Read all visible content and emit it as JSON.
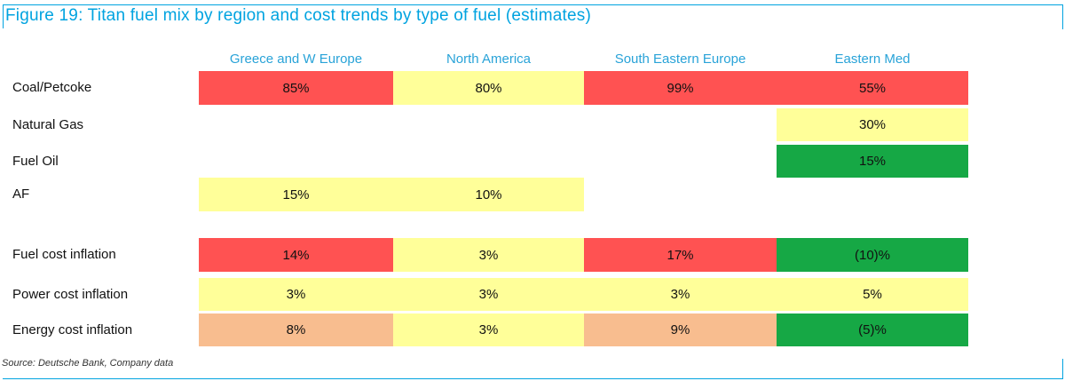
{
  "title": "Figure 19: Titan fuel mix by region and cost trends by type of fuel (estimates)",
  "source": "Source: Deutsche Bank, Company data",
  "colors": {
    "red": "#ff5252",
    "yellow": "#ffff99",
    "green": "#16a845",
    "orange": "#f8bd8f",
    "accent": "#00a3e0"
  },
  "chart_data": {
    "type": "table",
    "title": "Figure 19: Titan fuel mix by region and cost trends by type of fuel (estimates)",
    "columns": [
      "Greece and W Europe",
      "North America",
      "South Eastern Europe",
      "Eastern Med"
    ],
    "rows": [
      {
        "label": "Coal/Petcoke",
        "cells": [
          {
            "value": "85%",
            "color": "red"
          },
          {
            "value": "80%",
            "color": "yellow"
          },
          {
            "value": "99%",
            "color": "red"
          },
          {
            "value": "55%",
            "color": "red"
          }
        ]
      },
      {
        "label": "Natural Gas",
        "cells": [
          null,
          null,
          null,
          {
            "value": "30%",
            "color": "yellow"
          }
        ]
      },
      {
        "label": "Fuel Oil",
        "cells": [
          null,
          null,
          null,
          {
            "value": "15%",
            "color": "green"
          }
        ]
      },
      {
        "label": "AF",
        "cells": [
          {
            "value": "15%",
            "color": "yellow"
          },
          {
            "value": "10%",
            "color": "yellow"
          },
          null,
          null
        ]
      },
      {
        "label": "Fuel cost inflation",
        "cells": [
          {
            "value": "14%",
            "color": "red"
          },
          {
            "value": "3%",
            "color": "yellow"
          },
          {
            "value": "17%",
            "color": "red"
          },
          {
            "value": "(10)%",
            "color": "green"
          }
        ]
      },
      {
        "label": "Power cost inflation",
        "cells": [
          {
            "value": "3%",
            "color": "yellow"
          },
          {
            "value": "3%",
            "color": "yellow"
          },
          {
            "value": "3%",
            "color": "yellow"
          },
          {
            "value": "5%",
            "color": "yellow"
          }
        ]
      },
      {
        "label": "Energy cost inflation",
        "cells": [
          {
            "value": "8%",
            "color": "orange"
          },
          {
            "value": "3%",
            "color": "yellow"
          },
          {
            "value": "9%",
            "color": "orange"
          },
          {
            "value": "(5)%",
            "color": "green"
          }
        ]
      }
    ]
  }
}
